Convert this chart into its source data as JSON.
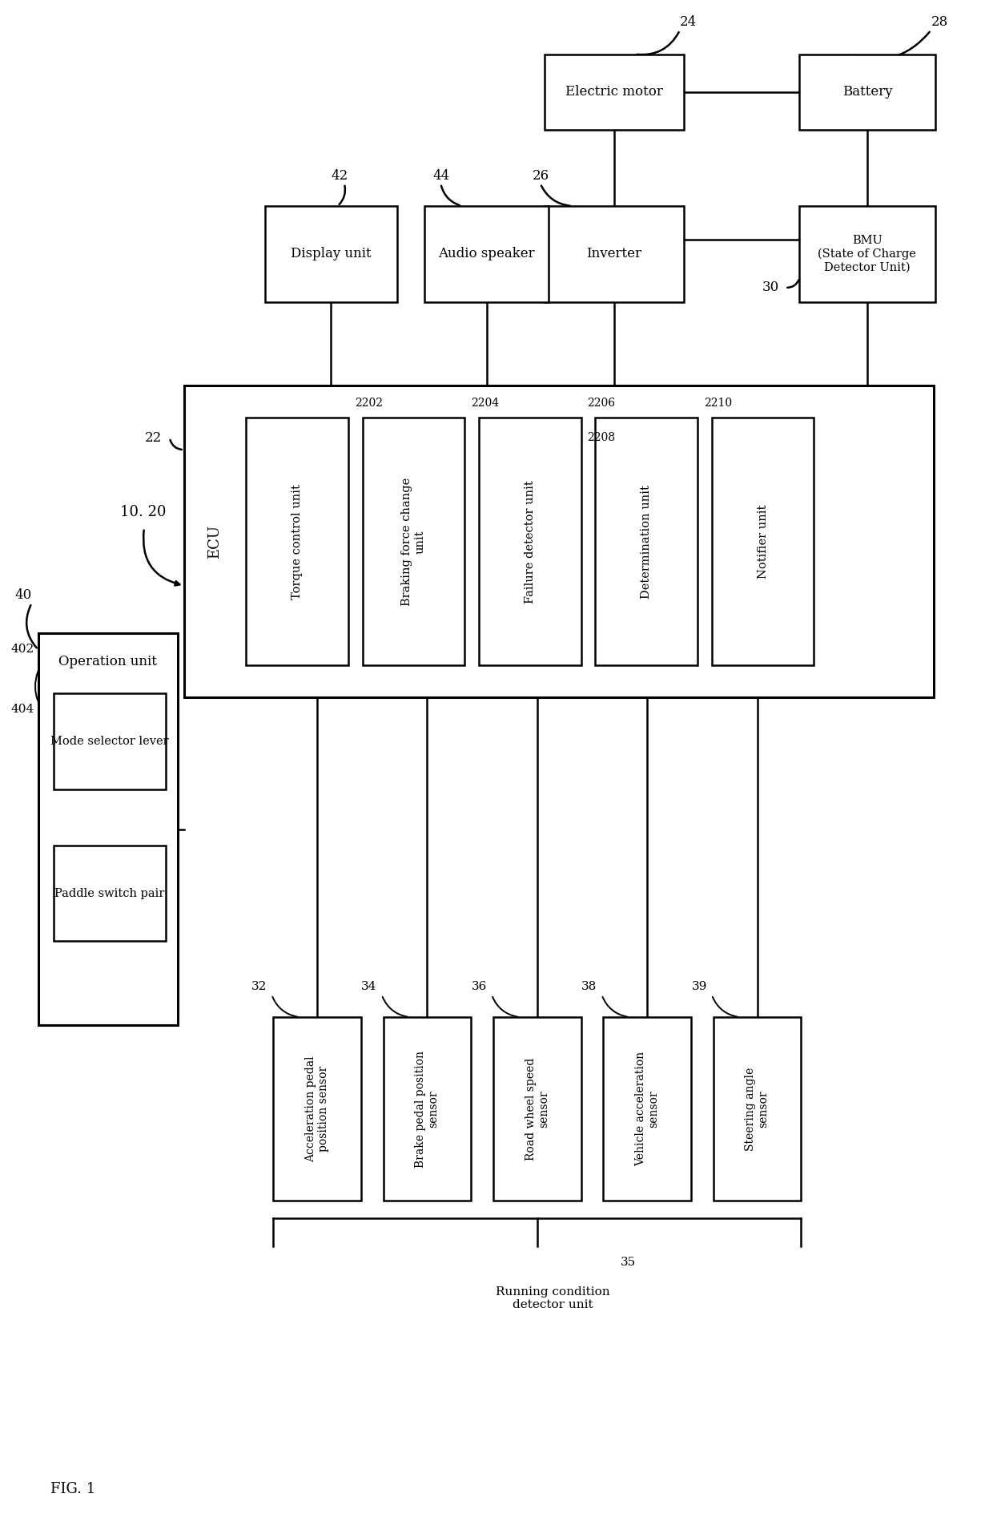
{
  "background_color": "#ffffff",
  "line_color": "#000000",
  "font_family": "DejaVu Serif",
  "fig_label": "FIG. 1",
  "electric_motor": {
    "label": "Electric motor",
    "ref": "24"
  },
  "battery": {
    "label": "Battery",
    "ref": "28"
  },
  "inverter": {
    "label": "Inverter",
    "ref": "26"
  },
  "bmu": {
    "label": "BMU\n(State of Charge\nDetector Unit)",
    "ref": "30"
  },
  "display_unit": {
    "label": "Display unit",
    "ref": "42"
  },
  "audio_speaker": {
    "label": "Audio speaker",
    "ref": "44"
  },
  "ecu_label": "ECU",
  "ecu_ref": "22",
  "torque_ctrl": {
    "label": "Torque control unit",
    "ref": "2202"
  },
  "braking_force": {
    "label": "Braking force change\nunit",
    "ref": "2204"
  },
  "failure_det": {
    "label": "Failure detector unit",
    "ref": "2206"
  },
  "determination": {
    "label": "Determination unit",
    "ref": "2208"
  },
  "notifier": {
    "label": "Notifier unit",
    "ref": "2210"
  },
  "operation_unit": {
    "label": "Operation unit",
    "ref": "40"
  },
  "mode_selector": {
    "label": "Mode selector lever",
    "ref": "402"
  },
  "paddle_switch": {
    "label": "Paddle switch pair",
    "ref": "404"
  },
  "s1": {
    "label": "Acceleration pedal\nposition sensor",
    "ref": "32"
  },
  "s2": {
    "label": "Brake pedal position\nsensor",
    "ref": "34"
  },
  "s3": {
    "label": "Road wheel speed\nsensor",
    "ref": "36"
  },
  "s4": {
    "label": "Vehicle acceleration\nsensor",
    "ref": "38"
  },
  "s5": {
    "label": "Steering angle\nsensor",
    "ref": "39"
  },
  "running_cond": {
    "label": "Running condition\ndetector unit",
    "ref": "35"
  },
  "anno_1020": "10. 20"
}
